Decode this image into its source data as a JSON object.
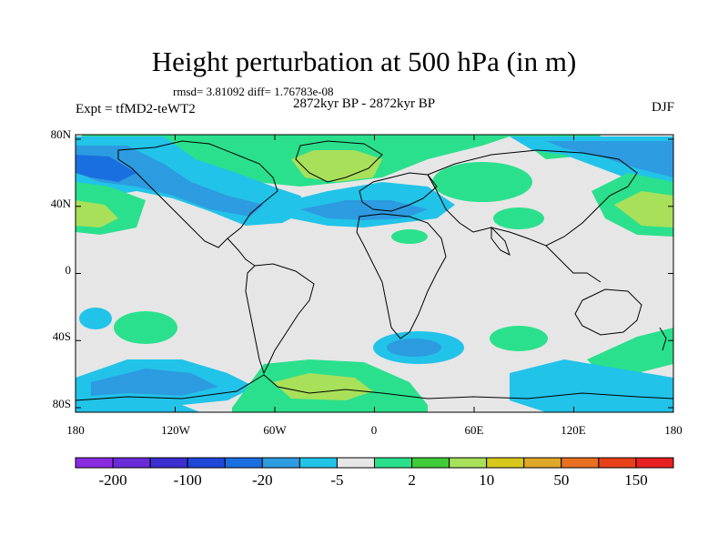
{
  "header": {
    "title": "Height perturbation at 500 hPa (in m)",
    "stats": "rmsd= 3.81092 diff= 1.76783e-08",
    "period": "2872kyr BP - 2872kyr BP",
    "experiment": "Expt = tfMD2-teWT2",
    "season": "DJF"
  },
  "axes": {
    "lat_labels": [
      "80N",
      "40N",
      "0",
      "40S",
      "80S"
    ],
    "lon_labels": [
      "180",
      "120W",
      "60W",
      "0",
      "60E",
      "120E",
      "180"
    ]
  },
  "colorbar": {
    "colors": [
      "#8a2be2",
      "#6a2bd8",
      "#3b2fd0",
      "#1f47d8",
      "#1a6fe0",
      "#2d9be0",
      "#22c3e8",
      "#e6e6e6",
      "#2be08c",
      "#3fcc38",
      "#a8e05a",
      "#d8c81c",
      "#e0a828",
      "#e87020",
      "#e84018",
      "#e82020"
    ],
    "labels": [
      "-200",
      "-100",
      "-20",
      "-5",
      "2",
      "10",
      "50",
      "150"
    ]
  },
  "palette": {
    "background": "#e6e6e6",
    "light_blue": "#22c3e8",
    "mid_blue": "#2d9be0",
    "blue": "#1a6fe0",
    "green_light": "#2be08c",
    "green": "#3fcc38",
    "yellow_green": "#a8e05a",
    "coastline": "#000000"
  }
}
